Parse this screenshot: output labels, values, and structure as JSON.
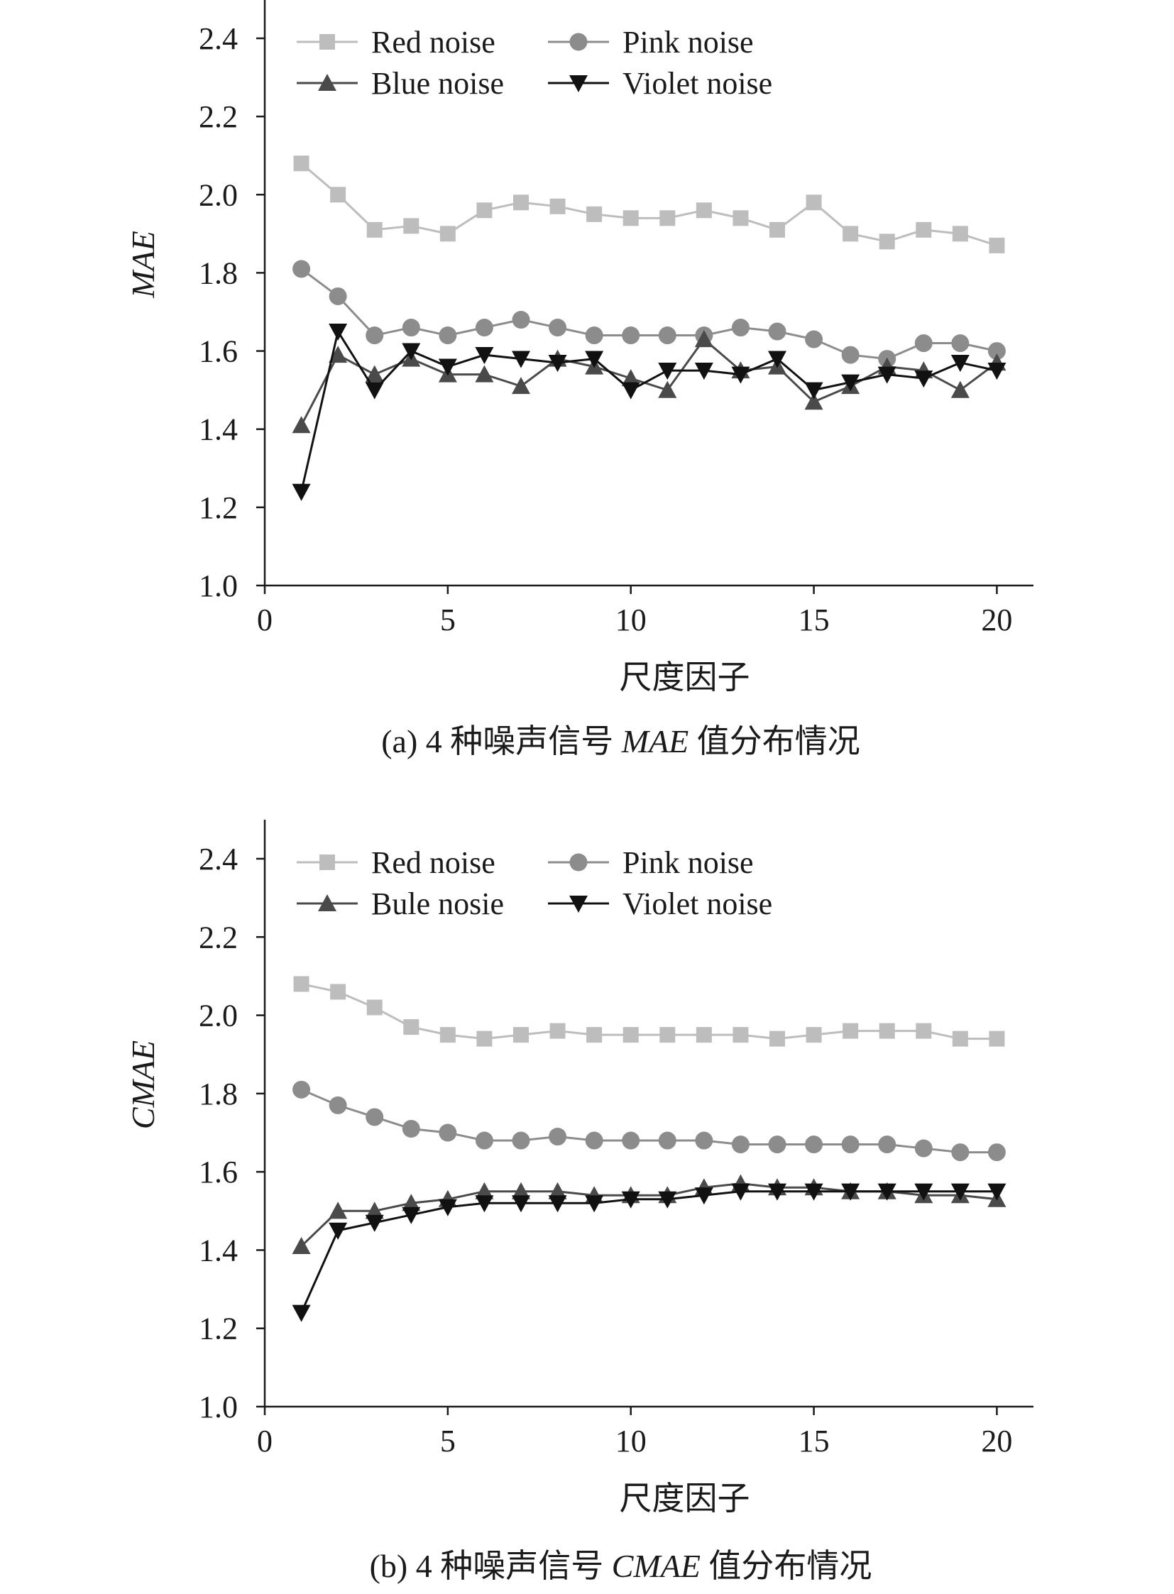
{
  "chart_data": [
    {
      "type": "line",
      "caption": {
        "prefix": "(a)  4 种噪声信号 ",
        "metric": "MAE",
        "suffix": " 值分布情况"
      },
      "xlabel": "尺度因子",
      "ylabel": "MAE",
      "xlim": [
        0,
        21
      ],
      "ylim": [
        1.0,
        2.5
      ],
      "xticks": [
        0,
        5,
        10,
        15,
        20
      ],
      "yticks": [
        1.0,
        1.2,
        1.4,
        1.6,
        1.8,
        2.0,
        2.2,
        2.4
      ],
      "grid": false,
      "legend_position": "top",
      "x": [
        1,
        2,
        3,
        4,
        5,
        6,
        7,
        8,
        9,
        10,
        11,
        12,
        13,
        14,
        15,
        16,
        17,
        18,
        19,
        20
      ],
      "series": [
        {
          "name": "Red noise",
          "marker": "square",
          "color": "#bdbdbd",
          "values": [
            2.08,
            2.0,
            1.91,
            1.92,
            1.9,
            1.96,
            1.98,
            1.97,
            1.95,
            1.94,
            1.94,
            1.96,
            1.94,
            1.91,
            1.98,
            1.9,
            1.88,
            1.91,
            1.9,
            1.87
          ]
        },
        {
          "name": "Pink noise",
          "marker": "circle",
          "color": "#8c8c8c",
          "values": [
            1.81,
            1.74,
            1.64,
            1.66,
            1.64,
            1.66,
            1.68,
            1.66,
            1.64,
            1.64,
            1.64,
            1.64,
            1.66,
            1.65,
            1.63,
            1.59,
            1.58,
            1.62,
            1.62,
            1.6
          ]
        },
        {
          "name": "Blue noise",
          "marker": "triangle-up",
          "color": "#4a4a4a",
          "values": [
            1.41,
            1.59,
            1.54,
            1.58,
            1.54,
            1.54,
            1.51,
            1.58,
            1.56,
            1.53,
            1.5,
            1.63,
            1.55,
            1.56,
            1.47,
            1.51,
            1.56,
            1.55,
            1.5,
            1.57
          ]
        },
        {
          "name": "Violet noise",
          "marker": "triangle-down",
          "color": "#111111",
          "values": [
            1.24,
            1.65,
            1.5,
            1.6,
            1.56,
            1.59,
            1.58,
            1.57,
            1.58,
            1.5,
            1.55,
            1.55,
            1.54,
            1.58,
            1.5,
            1.52,
            1.54,
            1.53,
            1.57,
            1.55
          ]
        }
      ]
    },
    {
      "type": "line",
      "caption": {
        "prefix": "(b)  4 种噪声信号 ",
        "metric": "CMAE",
        "suffix": " 值分布情况"
      },
      "xlabel": "尺度因子",
      "ylabel": "CMAE",
      "xlim": [
        0,
        21
      ],
      "ylim": [
        1.0,
        2.5
      ],
      "xticks": [
        0,
        5,
        10,
        15,
        20
      ],
      "yticks": [
        1.0,
        1.2,
        1.4,
        1.6,
        1.8,
        2.0,
        2.2,
        2.4
      ],
      "grid": false,
      "legend_position": "top",
      "x": [
        1,
        2,
        3,
        4,
        5,
        6,
        7,
        8,
        9,
        10,
        11,
        12,
        13,
        14,
        15,
        16,
        17,
        18,
        19,
        20
      ],
      "series": [
        {
          "name": "Red noise",
          "marker": "square",
          "color": "#bdbdbd",
          "values": [
            2.08,
            2.06,
            2.02,
            1.97,
            1.95,
            1.94,
            1.95,
            1.96,
            1.95,
            1.95,
            1.95,
            1.95,
            1.95,
            1.94,
            1.95,
            1.96,
            1.96,
            1.96,
            1.94,
            1.94
          ]
        },
        {
          "name": "Pink noise",
          "marker": "circle",
          "color": "#8c8c8c",
          "values": [
            1.81,
            1.77,
            1.74,
            1.71,
            1.7,
            1.68,
            1.68,
            1.69,
            1.68,
            1.68,
            1.68,
            1.68,
            1.67,
            1.67,
            1.67,
            1.67,
            1.67,
            1.66,
            1.65,
            1.65
          ]
        },
        {
          "name": "Bule nosie",
          "marker": "triangle-up",
          "color": "#4a4a4a",
          "values": [
            1.41,
            1.5,
            1.5,
            1.52,
            1.53,
            1.55,
            1.55,
            1.55,
            1.54,
            1.54,
            1.54,
            1.56,
            1.57,
            1.56,
            1.56,
            1.55,
            1.55,
            1.54,
            1.54,
            1.53
          ]
        },
        {
          "name": "Violet noise",
          "marker": "triangle-down",
          "color": "#111111",
          "values": [
            1.24,
            1.45,
            1.47,
            1.49,
            1.51,
            1.52,
            1.52,
            1.52,
            1.52,
            1.53,
            1.53,
            1.54,
            1.55,
            1.55,
            1.55,
            1.55,
            1.55,
            1.55,
            1.55,
            1.55
          ]
        }
      ]
    }
  ]
}
